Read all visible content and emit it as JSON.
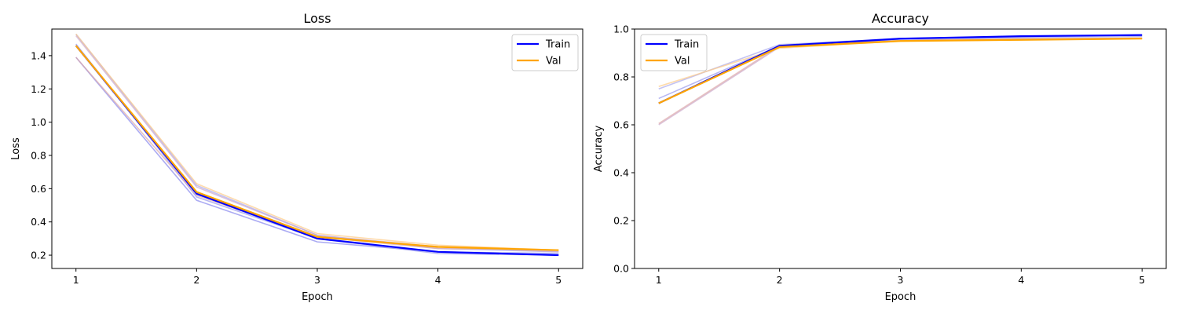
{
  "chart_data": [
    {
      "type": "line",
      "title": "Loss",
      "xlabel": "Epoch",
      "ylabel": "Loss",
      "x": [
        1,
        2,
        3,
        4,
        5
      ],
      "xticks": [
        "1",
        "2",
        "3",
        "4",
        "5"
      ],
      "yticks": [
        "0.2",
        "0.4",
        "0.6",
        "0.8",
        "1.0",
        "1.2",
        "1.4"
      ],
      "ylim": [
        0.12,
        1.56
      ],
      "legend_position": "top-right",
      "series": [
        {
          "name": "Train",
          "color": "#0000ff",
          "values": [
            1.46,
            0.57,
            0.3,
            0.22,
            0.2
          ]
        },
        {
          "name": "Val",
          "color": "#ffa500",
          "values": [
            1.46,
            0.58,
            0.31,
            0.25,
            0.23
          ]
        }
      ],
      "faint_runs": [
        {
          "color": "#8888ee",
          "values": [
            1.39,
            0.53,
            0.28,
            0.22,
            0.21
          ]
        },
        {
          "color": "#aaaaee",
          "values": [
            1.53,
            0.62,
            0.32,
            0.24,
            0.22
          ]
        },
        {
          "color": "#9999ee",
          "values": [
            1.47,
            0.55,
            0.3,
            0.21,
            0.2
          ]
        },
        {
          "color": "#ffcc88",
          "values": [
            1.53,
            0.63,
            0.33,
            0.26,
            0.23
          ]
        },
        {
          "color": "#ddaaaa",
          "values": [
            1.39,
            0.56,
            0.31,
            0.24,
            0.23
          ]
        },
        {
          "color": "#ccaacc",
          "values": [
            1.52,
            0.61,
            0.32,
            0.25,
            0.22
          ]
        }
      ]
    },
    {
      "type": "line",
      "title": "Accuracy",
      "xlabel": "Epoch",
      "ylabel": "Accuracy",
      "x": [
        1,
        2,
        3,
        4,
        5
      ],
      "xticks": [
        "1",
        "2",
        "3",
        "4",
        "5"
      ],
      "yticks": [
        "0.0",
        "0.2",
        "0.4",
        "0.6",
        "0.8",
        "1.0"
      ],
      "ylim": [
        0.0,
        1.0
      ],
      "legend_position": "top-left",
      "series": [
        {
          "name": "Train",
          "color": "#0000ff",
          "values": [
            0.69,
            0.93,
            0.96,
            0.97,
            0.975
          ]
        },
        {
          "name": "Val",
          "color": "#ffa500",
          "values": [
            0.69,
            0.925,
            0.95,
            0.955,
            0.96
          ]
        }
      ],
      "faint_runs": [
        {
          "color": "#9999ee",
          "values": [
            0.71,
            0.93,
            0.955,
            0.965,
            0.97
          ]
        },
        {
          "color": "#aaaaee",
          "values": [
            0.75,
            0.935,
            0.96,
            0.97,
            0.975
          ]
        },
        {
          "color": "#ffcc88",
          "values": [
            0.76,
            0.92,
            0.95,
            0.955,
            0.96
          ]
        },
        {
          "color": "#ccaacc",
          "values": [
            0.6,
            0.925,
            0.95,
            0.958,
            0.962
          ]
        },
        {
          "color": "#ddaaaa",
          "values": [
            0.605,
            0.93,
            0.952,
            0.96,
            0.963
          ]
        }
      ]
    }
  ]
}
